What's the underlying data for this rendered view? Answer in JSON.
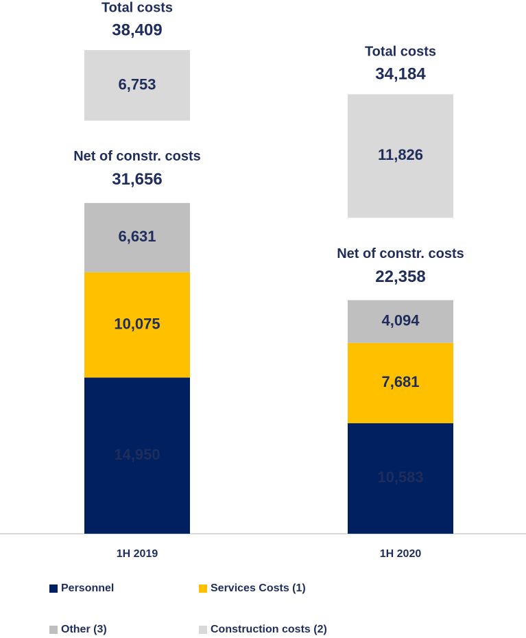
{
  "chart_data": {
    "type": "stacked-bar",
    "categories": [
      "1H 2019",
      "1H 2020"
    ],
    "series": [
      {
        "name": "Personnel",
        "color": "#002060",
        "values": [
          14950,
          10583
        ],
        "value_labels": [
          "14,950",
          "10,583"
        ]
      },
      {
        "name": "Services Costs (1)",
        "color": "#ffc000",
        "values": [
          10075,
          7681
        ],
        "value_labels": [
          "10,075",
          "7,681"
        ]
      },
      {
        "name": "Other (3)",
        "color": "#bfbfbf",
        "values": [
          6631,
          4094
        ],
        "value_labels": [
          "6,631",
          "4,094"
        ]
      },
      {
        "name": "Construction costs (2)",
        "color": "#d9d9d9",
        "values": [
          6753,
          11826
        ],
        "value_labels": [
          "6,753",
          "11,826"
        ]
      }
    ],
    "annotations": [
      {
        "net_label": "Net of constr. costs",
        "net_value": "31,656",
        "total_label": "Total costs",
        "total_value": "38,409"
      },
      {
        "net_label": "Net of constr. costs",
        "net_value": "22,358",
        "total_label": "Total costs",
        "total_value": "34,184"
      }
    ],
    "legend": "bottom"
  }
}
